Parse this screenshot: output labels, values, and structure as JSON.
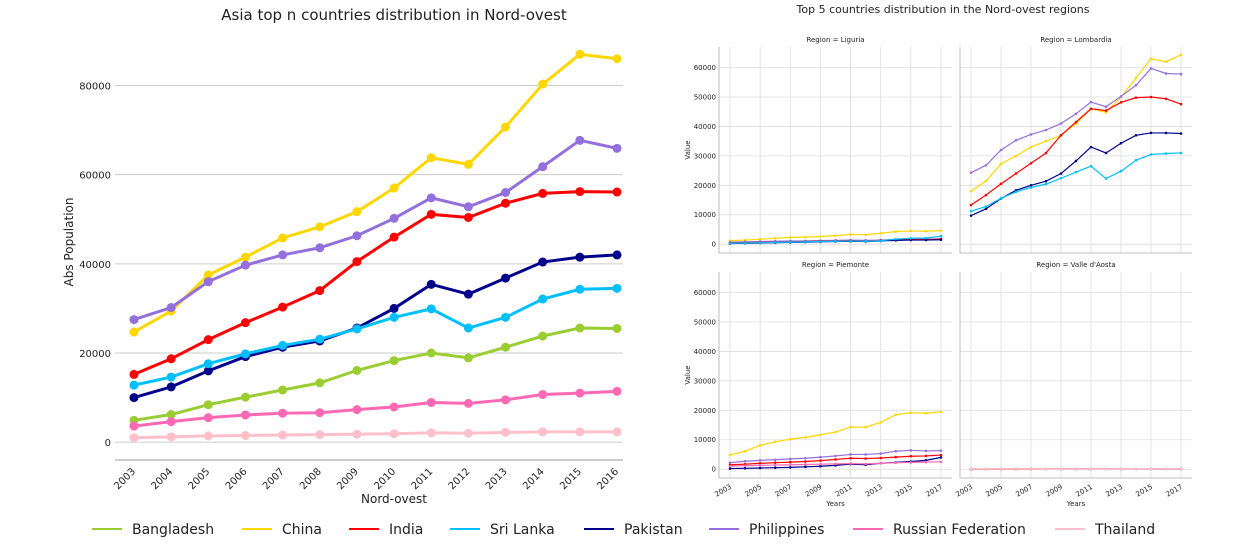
{
  "colors": {
    "Bangladesh": "#9acd32",
    "China": "#ffd700",
    "India": "#ff0000",
    "Sri Lanka": "#00bfff",
    "Pakistan": "#00008b",
    "Philippines": "#9370db",
    "Russian Federation": "#ff69b4",
    "Thailand": "#ffc0cb"
  },
  "legend": [
    "Bangladesh",
    "China",
    "India",
    "Sri Lanka",
    "Pakistan",
    "Philippines",
    "Russian Federation",
    "Thailand"
  ],
  "chart_data": [
    {
      "type": "line",
      "title": "Asia top n countries distribution in Nord-ovest",
      "xlabel": "Nord-ovest",
      "ylabel": "Abs Population",
      "x": [
        "2003",
        "2004",
        "2005",
        "2006",
        "2007",
        "2008",
        "2009",
        "2010",
        "2011",
        "2012",
        "2013",
        "2014",
        "2015",
        "2016"
      ],
      "yticks": [
        "0",
        "20000",
        "40000",
        "60000",
        "80000"
      ],
      "ylim": [
        -4000,
        92000
      ],
      "grid": "y",
      "legend_position": "bottom",
      "series": [
        {
          "name": "China",
          "values": [
            24700,
            29400,
            37500,
            41500,
            45800,
            48300,
            51700,
            57000,
            63800,
            62300,
            70700,
            80300,
            87000,
            86000
          ]
        },
        {
          "name": "Philippines",
          "values": [
            27500,
            30200,
            36000,
            39700,
            42000,
            43600,
            46300,
            50200,
            54800,
            52800,
            56000,
            61800,
            67700,
            65900
          ]
        },
        {
          "name": "India",
          "values": [
            15200,
            18700,
            23000,
            26800,
            30300,
            34000,
            40500,
            46000,
            51100,
            50400,
            53600,
            55800,
            56200,
            56100
          ]
        },
        {
          "name": "Pakistan",
          "values": [
            10000,
            12400,
            16000,
            19200,
            21300,
            22700,
            25600,
            30000,
            35400,
            33200,
            36800,
            40400,
            41500,
            42000
          ]
        },
        {
          "name": "Sri Lanka",
          "values": [
            12800,
            14600,
            17600,
            19800,
            21700,
            23100,
            25400,
            28000,
            29900,
            25600,
            28000,
            32100,
            34300,
            34500
          ]
        },
        {
          "name": "Bangladesh",
          "values": [
            4900,
            6200,
            8400,
            10100,
            11700,
            13300,
            16100,
            18300,
            20000,
            18900,
            21300,
            23800,
            25600,
            25500
          ]
        },
        {
          "name": "Russian Federation",
          "values": [
            3600,
            4600,
            5500,
            6100,
            6500,
            6600,
            7300,
            7900,
            8900,
            8700,
            9500,
            10700,
            11000,
            11400
          ]
        },
        {
          "name": "Thailand",
          "values": [
            1000,
            1200,
            1400,
            1500,
            1600,
            1700,
            1800,
            1900,
            2100,
            2000,
            2200,
            2300,
            2300,
            2300
          ]
        }
      ]
    },
    {
      "type": "line",
      "title": "Top 5 countries distribution in the Nord-ovest regions",
      "xlabel": "Years",
      "ylabel": "Value",
      "x": [
        2003,
        2004,
        2005,
        2006,
        2007,
        2008,
        2009,
        2010,
        2011,
        2012,
        2013,
        2014,
        2015,
        2016,
        2017
      ],
      "xticks": [
        "2003",
        "2005",
        "2007",
        "2009",
        "2011",
        "2013",
        "2015",
        "2017"
      ],
      "yticks": [
        "0",
        "10000",
        "20000",
        "30000",
        "40000",
        "50000",
        "60000"
      ],
      "ylim": [
        -3000,
        67000
      ],
      "facets": [
        {
          "title": "Region = Liguria",
          "series": [
            {
              "name": "China",
              "values": [
                1200,
                1400,
                1700,
                2000,
                2300,
                2400,
                2600,
                2900,
                3300,
                3200,
                3700,
                4300,
                4500,
                4400,
                4600
              ]
            },
            {
              "name": "Philippines",
              "values": [
                700,
                800,
                900,
                1000,
                1100,
                1100,
                1200,
                1300,
                1400,
                1300,
                1400,
                1600,
                1700,
                1700,
                1800
              ]
            },
            {
              "name": "India",
              "values": [
                400,
                500,
                600,
                700,
                800,
                900,
                1000,
                1100,
                1200,
                1100,
                1300,
                1500,
                1600,
                1600,
                1700
              ]
            },
            {
              "name": "Pakistan",
              "values": [
                200,
                300,
                400,
                500,
                600,
                700,
                800,
                900,
                1000,
                900,
                1100,
                1300,
                1400,
                1400,
                1500
              ]
            },
            {
              "name": "Sri Lanka",
              "values": [
                300,
                400,
                500,
                600,
                700,
                800,
                900,
                1000,
                1100,
                1000,
                1200,
                1700,
                2000,
                2100,
                2700
              ]
            }
          ]
        },
        {
          "title": "Region = Lombardia",
          "series": [
            {
              "name": "China",
              "values": [
                18000,
                21500,
                27300,
                30000,
                33000,
                35000,
                37000,
                41000,
                46000,
                44800,
                50000,
                56500,
                63000,
                62000,
                64300
              ]
            },
            {
              "name": "Philippines",
              "values": [
                24300,
                26800,
                32000,
                35300,
                37300,
                38800,
                41000,
                44300,
                48300,
                46700,
                50200,
                54000,
                59700,
                58000,
                57800
              ]
            },
            {
              "name": "India",
              "values": [
                13300,
                16700,
                20500,
                24000,
                27500,
                31000,
                37000,
                41500,
                46000,
                45400,
                48200,
                49800,
                50000,
                49400,
                47600
              ]
            },
            {
              "name": "Pakistan",
              "values": [
                9700,
                12000,
                15500,
                18300,
                20000,
                21400,
                24000,
                28300,
                33000,
                31000,
                34300,
                37000,
                37800,
                37800,
                37600
              ]
            },
            {
              "name": "Sri Lanka",
              "values": [
                11200,
                12800,
                15600,
                17800,
                19300,
                20400,
                22400,
                24500,
                26500,
                22300,
                24800,
                28500,
                30500,
                30800,
                31000
              ]
            }
          ]
        },
        {
          "title": "Region = Piemonte",
          "series": [
            {
              "name": "China",
              "values": [
                4800,
                6100,
                8100,
                9300,
                10200,
                10800,
                11700,
                12600,
                14300,
                14300,
                15900,
                18500,
                19200,
                19000,
                19500
              ]
            },
            {
              "name": "Philippines",
              "values": [
                2200,
                2700,
                3000,
                3200,
                3500,
                3700,
                4100,
                4500,
                5000,
                5000,
                5300,
                6100,
                6400,
                6200,
                6300
              ]
            },
            {
              "name": "India",
              "values": [
                1500,
                1700,
                2000,
                2200,
                2400,
                2600,
                2900,
                3300,
                3700,
                3600,
                3800,
                4100,
                4400,
                4500,
                4800
              ]
            },
            {
              "name": "Pakistan",
              "values": [
                200,
                300,
                400,
                500,
                600,
                800,
                1000,
                1300,
                1700,
                1500,
                2000,
                2300,
                2600,
                3000,
                4000
              ]
            },
            {
              "name": "Russian Federation",
              "values": [
                1000,
                1200,
                1300,
                1400,
                1500,
                1600,
                1700,
                1800,
                1900,
                1800,
                2000,
                2200,
                2300,
                2400,
                2500
              ]
            }
          ]
        },
        {
          "title": "Region = Valle d'Aosta",
          "series": [
            {
              "name": "China",
              "values": [
                50,
                60,
                70,
                80,
                90,
                100,
                110,
                120,
                130,
                120,
                130,
                140,
                150,
                150,
                150
              ]
            },
            {
              "name": "Philippines",
              "values": [
                20,
                20,
                30,
                30,
                40,
                40,
                50,
                50,
                60,
                60,
                60,
                70,
                70,
                70,
                70
              ]
            },
            {
              "name": "India",
              "values": [
                30,
                40,
                50,
                60,
                70,
                80,
                90,
                100,
                110,
                100,
                110,
                120,
                130,
                130,
                130
              ]
            },
            {
              "name": "Russian Federation",
              "values": [
                40,
                50,
                60,
                70,
                80,
                90,
                100,
                110,
                120,
                110,
                120,
                130,
                140,
                140,
                140
              ]
            },
            {
              "name": "Thailand",
              "values": [
                60,
                70,
                80,
                90,
                100,
                110,
                120,
                130,
                140,
                130,
                140,
                150,
                160,
                160,
                160
              ]
            }
          ]
        }
      ]
    }
  ]
}
